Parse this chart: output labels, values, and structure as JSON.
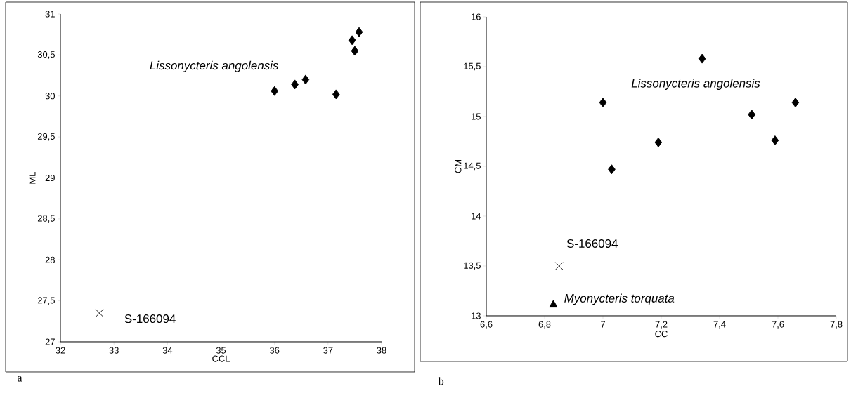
{
  "chart_data": [
    {
      "type": "scatter",
      "xlabel": "CCL",
      "ylabel": "ML",
      "xlim": [
        32,
        38
      ],
      "ylim": [
        27,
        31
      ],
      "xticks": [
        32,
        33,
        34,
        35,
        36,
        37,
        38
      ],
      "yticks": [
        27,
        {
          "value": 27.5,
          "label": "27,5"
        },
        28,
        {
          "value": 28.5,
          "label": "28,5"
        },
        29,
        {
          "value": 29.5,
          "label": "29,5"
        },
        30,
        {
          "value": 30.5,
          "label": "30,5"
        },
        31
      ],
      "series": [
        {
          "name": "*Lissonycteris angolensis*",
          "color": "#000000",
          "marker": "diamond",
          "x": [
            36.0,
            36.38,
            36.58,
            37.15,
            37.45,
            37.5,
            37.58
          ],
          "values": [
            30.06,
            30.14,
            30.2,
            30.02,
            30.68,
            30.55,
            30.78
          ]
        },
        {
          "name": "S-166094",
          "color": "#000000",
          "marker": "cross",
          "x": [
            32.73
          ],
          "values": [
            27.35
          ]
        }
      ],
      "annotations": [
        "a"
      ]
    },
    {
      "type": "scatter",
      "xlabel": "CC",
      "ylabel": "CM",
      "xlim": [
        6.6,
        7.8
      ],
      "ylim": [
        13,
        16
      ],
      "xticks": [
        {
          "value": 6.6,
          "label": "6,6"
        },
        {
          "value": 6.8,
          "label": "6,8"
        },
        7,
        {
          "value": 7.2,
          "label": "7,2"
        },
        {
          "value": 7.4,
          "label": "7,4"
        },
        {
          "value": 7.6,
          "label": "7,6"
        },
        {
          "value": 7.8,
          "label": "7,8"
        }
      ],
      "yticks": [
        13,
        {
          "value": 13.5,
          "label": "13,5"
        },
        14,
        {
          "value": 14.5,
          "label": "14,5"
        },
        15,
        {
          "value": 15.5,
          "label": "15,5"
        },
        16
      ],
      "series": [
        {
          "name": "*Lissonycteris angolensis*",
          "color": "#000000",
          "marker": "diamond",
          "x": [
            7.0,
            7.03,
            7.19,
            7.34,
            7.51,
            7.59,
            7.66
          ],
          "values": [
            15.14,
            14.47,
            14.74,
            15.58,
            15.02,
            14.76,
            15.14
          ]
        },
        {
          "name": "S-166094",
          "color": "#000000",
          "marker": "cross",
          "x": [
            6.85
          ],
          "values": [
            13.5
          ]
        },
        {
          "name": "*Myonycteris torquata*",
          "color": "#000000",
          "marker": "triangle",
          "x": [
            6.83
          ],
          "values": [
            13.11
          ]
        }
      ],
      "annotations": [
        "b"
      ]
    }
  ]
}
